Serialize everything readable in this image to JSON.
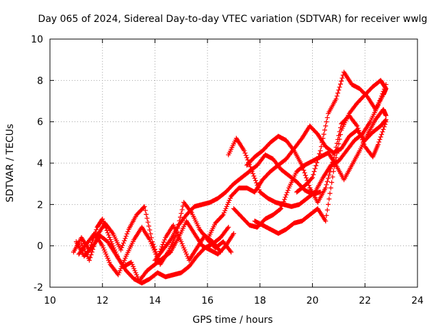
{
  "chart_data": {
    "type": "scatter",
    "title": "Day 065 of 2024, Sidereal Day-to-day VTEC variation (SDTVAR) for receiver wwlg",
    "xlabel": "GPS time / hours",
    "ylabel": "SDTVAR / TECUs",
    "xlim": [
      10,
      24
    ],
    "ylim": [
      -2,
      10
    ],
    "xticks": [
      "10",
      "12",
      "14",
      "16",
      "18",
      "20",
      "22",
      "24"
    ],
    "yticks": [
      "-2",
      "0",
      "2",
      "4",
      "6",
      "8",
      "10"
    ],
    "grid": true,
    "marker": "plus",
    "color": "#ff0000",
    "series": [
      {
        "x": [
          10.9,
          11.2,
          11.5,
          11.8,
          12.0,
          12.3,
          12.6,
          12.9,
          13.2,
          13.5,
          13.8,
          14.1,
          14.4,
          14.7,
          15.0,
          15.3,
          15.6,
          15.9,
          16.2,
          16.5,
          16.8
        ],
        "y": [
          -0.3,
          0.4,
          -0.2,
          0.9,
          1.3,
          0.3,
          -0.6,
          -1.2,
          -1.6,
          -1.8,
          -1.6,
          -1.3,
          -1.5,
          -1.4,
          -1.3,
          -1.0,
          -0.5,
          -0.1,
          0.1,
          0.4,
          0.9
        ]
      },
      {
        "x": [
          11.0,
          11.3,
          11.6,
          11.9,
          12.2,
          12.5,
          12.8,
          13.1,
          13.4,
          13.7,
          14.0,
          14.3,
          14.6,
          14.9,
          15.2,
          15.5,
          15.8,
          16.1,
          16.4,
          16.7,
          17.0
        ],
        "y": [
          0.2,
          -0.5,
          -0.1,
          0.5,
          0.2,
          -0.4,
          -1.0,
          -0.8,
          -1.7,
          -1.2,
          -0.9,
          -0.6,
          -0.3,
          0.4,
          1.2,
          0.6,
          0.0,
          -0.2,
          -0.4,
          0.0,
          0.6
        ]
      },
      {
        "x": [
          11.1,
          11.4,
          11.7,
          12.0,
          12.3,
          12.6,
          12.9,
          13.2,
          13.5,
          13.8,
          14.1,
          14.4,
          14.7,
          15.0,
          15.3,
          15.6,
          15.9,
          16.2,
          16.5
        ],
        "y": [
          -0.4,
          0.1,
          0.6,
          0.0,
          -0.9,
          -1.4,
          -0.5,
          0.3,
          0.9,
          0.3,
          -0.6,
          0.4,
          1.0,
          0.2,
          -0.7,
          -0.1,
          0.5,
          0.2,
          -0.3
        ]
      },
      {
        "x": [
          11.2,
          11.5,
          11.8,
          12.1,
          12.4,
          12.7,
          13.0,
          13.3,
          13.6,
          13.9,
          14.2,
          14.5,
          14.8,
          15.1,
          15.4,
          15.7,
          16.0,
          16.3,
          16.6,
          16.9
        ],
        "y": [
          0.1,
          -0.7,
          0.5,
          1.1,
          0.6,
          -0.2,
          0.8,
          1.5,
          1.9,
          0.2,
          -0.9,
          -0.3,
          0.5,
          2.1,
          1.6,
          0.8,
          0.3,
          -0.1,
          0.2,
          -0.3
        ]
      },
      {
        "x": [
          14.0,
          14.3,
          14.6,
          14.9,
          15.2,
          15.5,
          15.8,
          16.1,
          16.4,
          16.7,
          17.0,
          17.3,
          17.6,
          17.9,
          18.2,
          18.5,
          18.8,
          19.1,
          19.4,
          19.7,
          20.0,
          20.3
        ],
        "y": [
          -0.7,
          -0.2,
          0.3,
          1.0,
          1.5,
          1.9,
          2.0,
          2.1,
          2.3,
          2.6,
          3.0,
          3.3,
          3.6,
          3.9,
          4.4,
          4.2,
          3.7,
          3.4,
          3.1,
          2.7,
          2.5,
          2.6
        ]
      },
      {
        "x": [
          16.0,
          16.3,
          16.6,
          16.9,
          17.2,
          17.5,
          17.8,
          18.1,
          18.4,
          18.7,
          19.0,
          19.3,
          19.6,
          19.9,
          20.2,
          20.5,
          20.8,
          21.1,
          21.4,
          21.7,
          22.0,
          22.3,
          22.6,
          22.8
        ],
        "y": [
          0.3,
          1.1,
          1.5,
          2.4,
          2.8,
          2.8,
          2.6,
          3.2,
          3.6,
          3.9,
          4.2,
          4.7,
          5.2,
          5.8,
          5.4,
          4.8,
          4.5,
          4.7,
          5.3,
          5.6,
          5.1,
          5.5,
          5.8,
          6.1
        ]
      },
      {
        "x": [
          16.8,
          17.1,
          17.4,
          17.7,
          18.0,
          18.3,
          18.6,
          18.9,
          19.2,
          19.5,
          19.8,
          20.1,
          20.4,
          20.7,
          21.0,
          21.3,
          21.6,
          21.9,
          22.2,
          22.5,
          22.8
        ],
        "y": [
          4.4,
          5.2,
          4.6,
          3.6,
          2.6,
          2.3,
          2.1,
          2.0,
          1.9,
          2.0,
          2.3,
          2.6,
          3.3,
          3.9,
          4.1,
          4.6,
          5.1,
          5.4,
          6.0,
          6.8,
          7.8
        ]
      },
      {
        "x": [
          17.0,
          17.3,
          17.6,
          17.9,
          18.2,
          18.5,
          18.8,
          19.1,
          19.4,
          19.7,
          20.0,
          20.3,
          20.6,
          20.9,
          21.2,
          21.5,
          21.8,
          22.1,
          22.4,
          22.7,
          22.8
        ],
        "y": [
          1.8,
          1.4,
          1.0,
          0.9,
          1.3,
          1.5,
          1.8,
          2.8,
          3.6,
          3.9,
          4.1,
          4.3,
          4.5,
          3.9,
          3.2,
          3.9,
          4.6,
          5.4,
          6.1,
          6.6,
          6.3
        ]
      },
      {
        "x": [
          17.5,
          17.8,
          18.1,
          18.4,
          18.7,
          19.0,
          19.3,
          19.6,
          19.9,
          20.2,
          20.5,
          20.8,
          21.1,
          21.4,
          21.7,
          22.0,
          22.3,
          22.5,
          22.8
        ],
        "y": [
          3.9,
          4.3,
          4.6,
          5.0,
          5.3,
          5.1,
          4.6,
          3.9,
          2.8,
          2.1,
          2.8,
          4.2,
          5.9,
          6.3,
          5.8,
          4.8,
          4.3,
          4.9,
          6.0
        ]
      },
      {
        "x": [
          17.8,
          18.1,
          18.4,
          18.7,
          19.0,
          19.3,
          19.6,
          19.9,
          20.2,
          20.5,
          20.8,
          21.1,
          21.4,
          21.7,
          22.0,
          22.3,
          22.6,
          22.8
        ],
        "y": [
          1.2,
          1.0,
          0.8,
          0.6,
          0.8,
          1.1,
          1.2,
          1.5,
          1.8,
          1.2,
          3.6,
          5.6,
          6.4,
          6.9,
          7.3,
          7.7,
          8.0,
          7.6
        ]
      },
      {
        "x": [
          19.4,
          19.7,
          20.0,
          20.3,
          20.6,
          20.9,
          21.2,
          21.5,
          21.8,
          22.1,
          22.4,
          22.7,
          22.8
        ],
        "y": [
          2.6,
          2.9,
          3.3,
          4.6,
          6.4,
          7.1,
          8.4,
          7.8,
          7.6,
          7.2,
          6.6,
          7.3,
          7.6
        ]
      }
    ]
  }
}
